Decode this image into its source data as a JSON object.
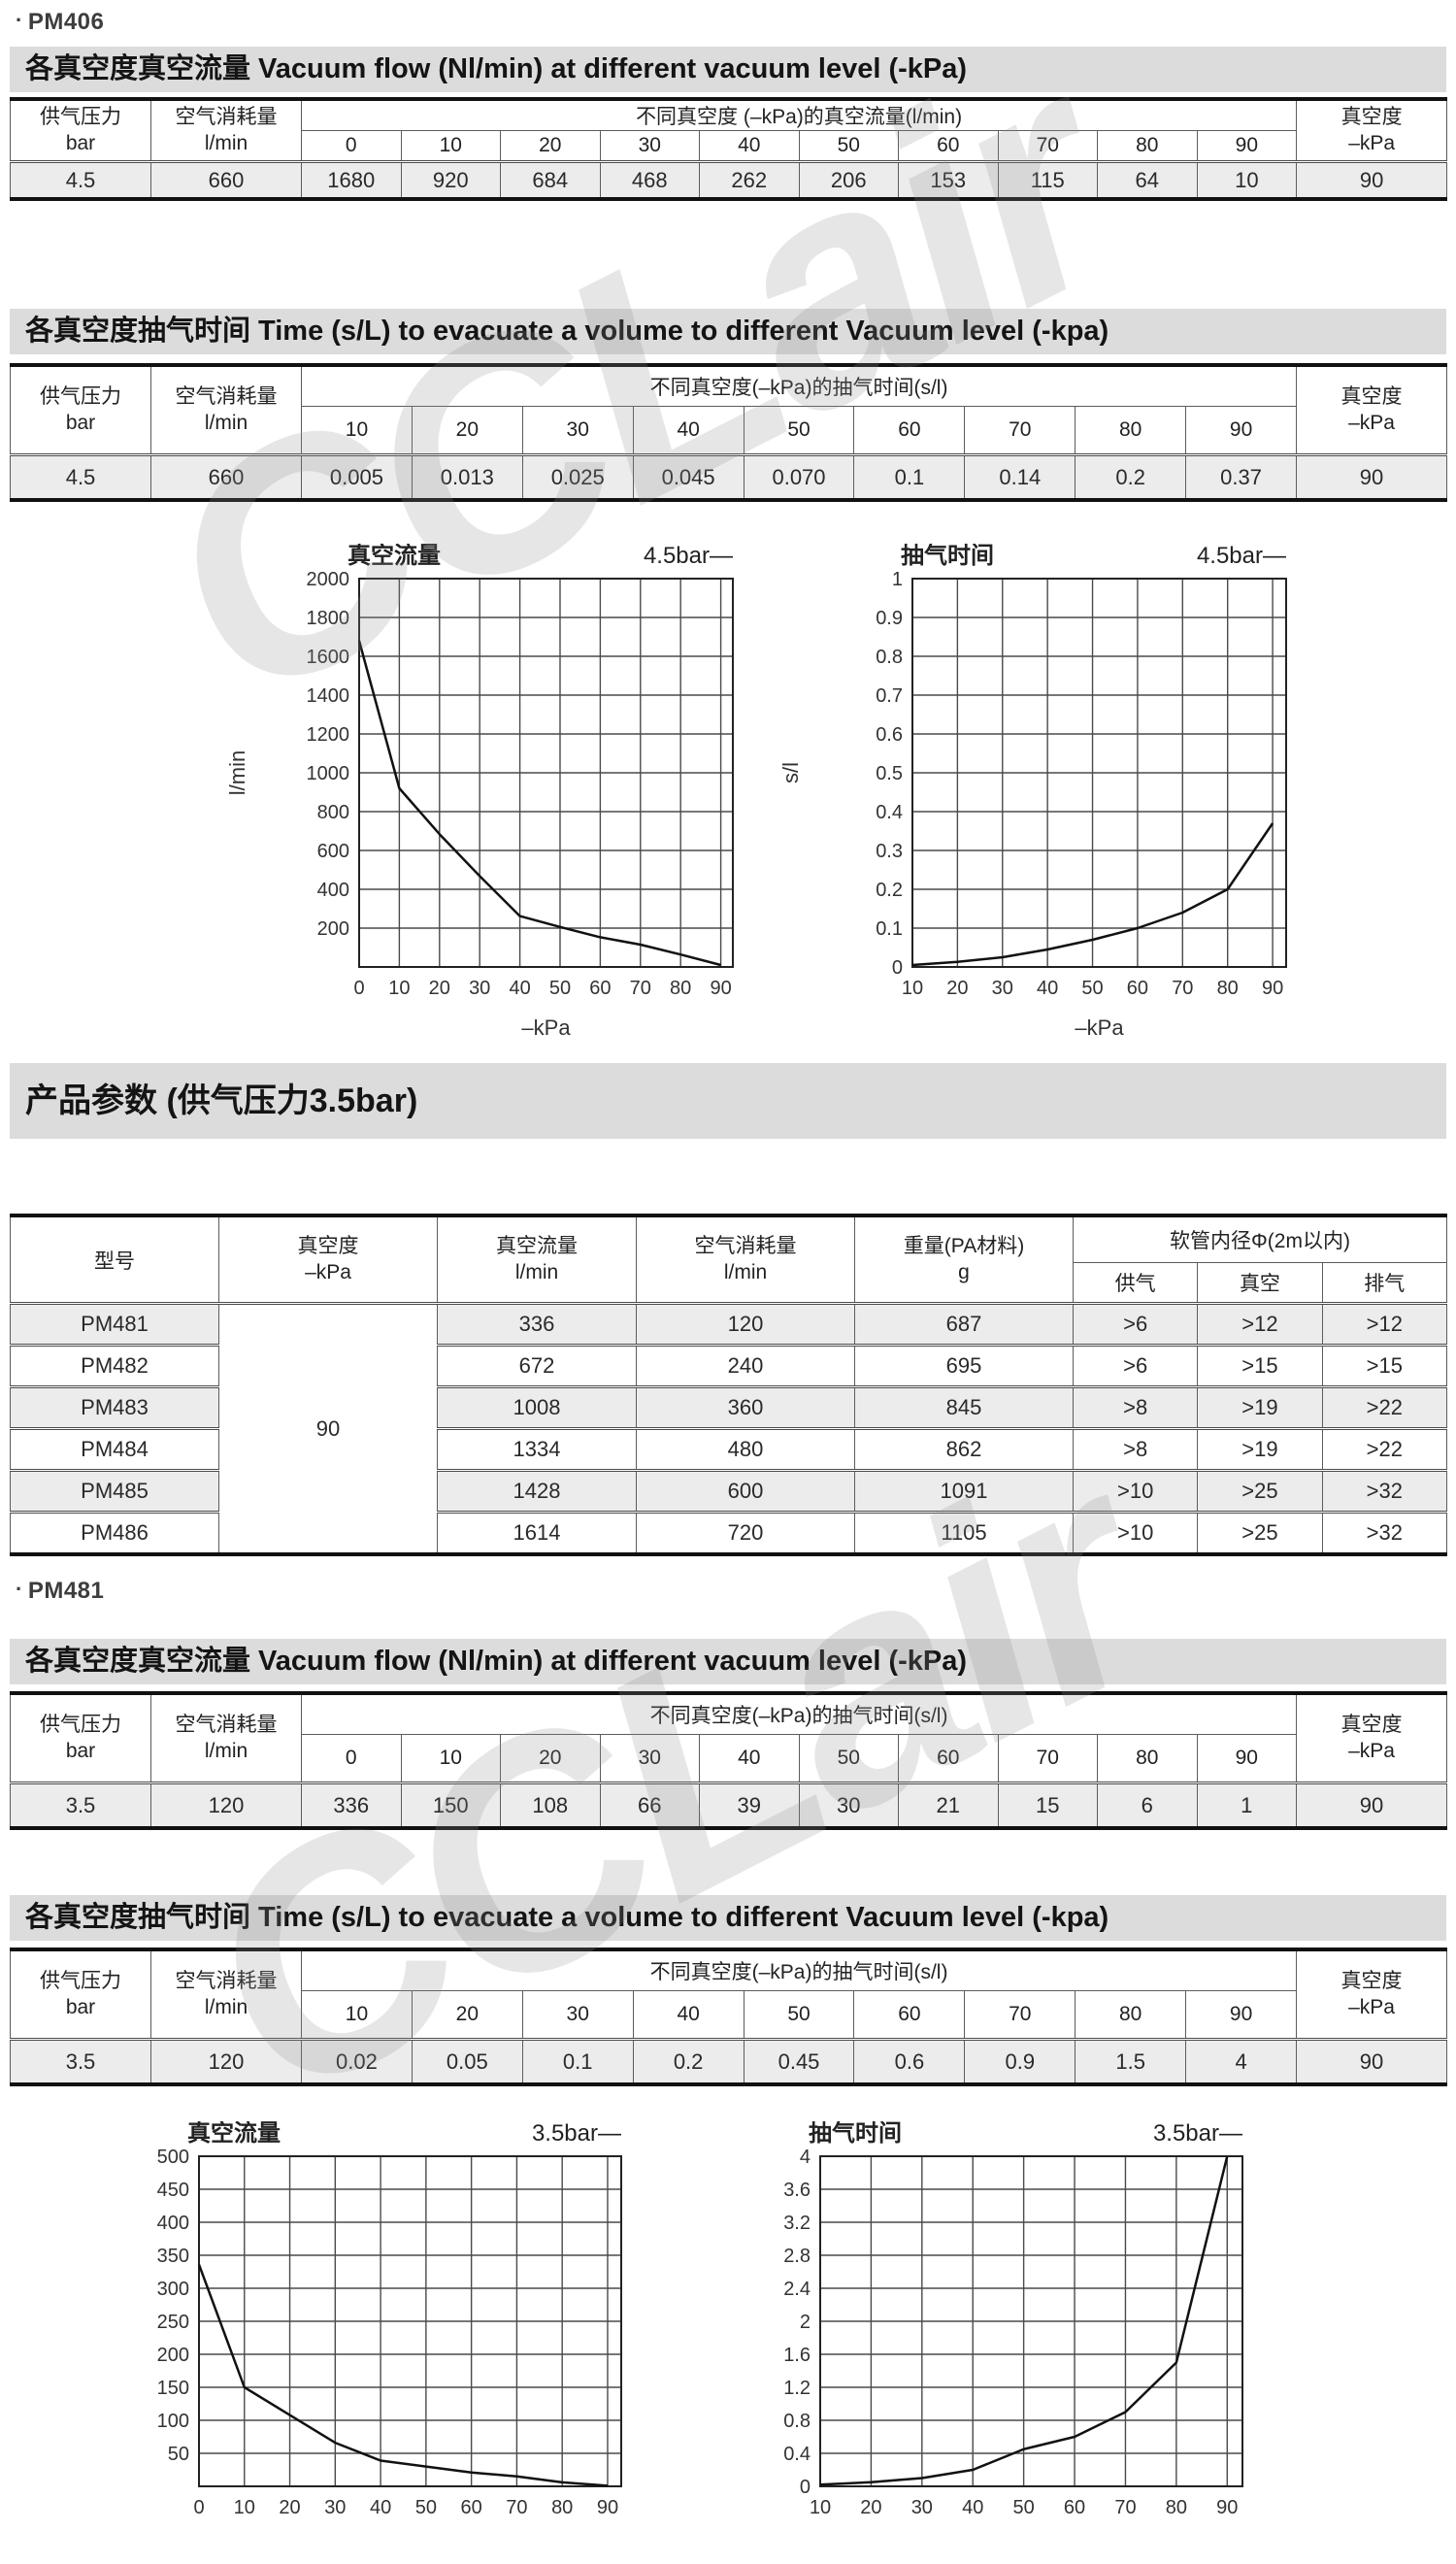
{
  "headers": {
    "pm406": {
      "bullet": "·",
      "text": "PM406"
    },
    "pm481": {
      "bullet": "·",
      "text": "PM481"
    }
  },
  "section_titles": {
    "flow": "各真空度真空流量 Vacuum flow (Nl/min) at different vacuum level (-kPa)",
    "time": "各真空度抽气时间 Time (s/L) to evacuate a volume to different Vacuum level (-kpa)",
    "params": "产品参数 (供气压力3.5bar)"
  },
  "common": {
    "supply_label": "供气压力",
    "supply_unit": "bar",
    "consumption_label": "空气消耗量",
    "consumption_unit": "l/min",
    "vacuum_label": "真空度",
    "vacuum_unit": "–kPa"
  },
  "tables": {
    "pm406_flow": {
      "span_label": "不同真空度 (–kPa)的真空流量(l/min)",
      "columns": [
        "0",
        "10",
        "20",
        "30",
        "40",
        "50",
        "60",
        "70",
        "80",
        "90"
      ],
      "supply": "4.5",
      "consumption": "660",
      "values": [
        "1680",
        "920",
        "684",
        "468",
        "262",
        "206",
        "153",
        "115",
        "64",
        "10"
      ],
      "vacuum": "90"
    },
    "pm406_time": {
      "span_label": "不同真空度(–kPa)的抽气时间(s/l)",
      "columns": [
        "10",
        "20",
        "30",
        "40",
        "50",
        "60",
        "70",
        "80",
        "90"
      ],
      "supply": "4.5",
      "consumption": "660",
      "values": [
        "0.005",
        "0.013",
        "0.025",
        "0.045",
        "0.070",
        "0.1",
        "0.14",
        "0.2",
        "0.37"
      ],
      "vacuum": "90"
    },
    "pm481_flow": {
      "span_label": "不同真空度(–kPa)的抽气时间(s/l)",
      "columns": [
        "0",
        "10",
        "20",
        "30",
        "40",
        "50",
        "60",
        "70",
        "80",
        "90"
      ],
      "supply": "3.5",
      "consumption": "120",
      "values": [
        "336",
        "150",
        "108",
        "66",
        "39",
        "30",
        "21",
        "15",
        "6",
        "1"
      ],
      "vacuum": "90"
    },
    "pm481_time": {
      "span_label": "不同真空度(–kPa)的抽气时间(s/l)",
      "columns": [
        "10",
        "20",
        "30",
        "40",
        "50",
        "60",
        "70",
        "80",
        "90"
      ],
      "supply": "3.5",
      "consumption": "120",
      "values": [
        "0.02",
        "0.05",
        "0.1",
        "0.2",
        "0.45",
        "0.6",
        "0.9",
        "1.5",
        "4"
      ],
      "vacuum": "90"
    }
  },
  "params": {
    "model_label": "型号",
    "vacuum_label": "真空度",
    "vacuum_unit": "–kPa",
    "flow_label": "真空流量",
    "flow_unit": "l/min",
    "consumption_label": "空气消耗量",
    "consumption_unit": "l/min",
    "weight_label": "重量(PA材料)",
    "weight_unit": "g",
    "hose_label": "软管内径Φ(2m以内)",
    "hose_supply": "供气",
    "hose_vacuum": "真空",
    "hose_exhaust": "排气",
    "vacuum_value": "90",
    "rows": [
      {
        "model": "PM481",
        "flow": "336",
        "consumption": "120",
        "weight": "687",
        "supply": ">6",
        "vacuum": ">12",
        "exhaust": ">12"
      },
      {
        "model": "PM482",
        "flow": "672",
        "consumption": "240",
        "weight": "695",
        "supply": ">6",
        "vacuum": ">15",
        "exhaust": ">15"
      },
      {
        "model": "PM483",
        "flow": "1008",
        "consumption": "360",
        "weight": "845",
        "supply": ">8",
        "vacuum": ">19",
        "exhaust": ">22"
      },
      {
        "model": "PM484",
        "flow": "1334",
        "consumption": "480",
        "weight": "862",
        "supply": ">8",
        "vacuum": ">19",
        "exhaust": ">22"
      },
      {
        "model": "PM485",
        "flow": "1428",
        "consumption": "600",
        "weight": "1091",
        "supply": ">10",
        "vacuum": ">25",
        "exhaust": ">32"
      },
      {
        "model": "PM486",
        "flow": "1614",
        "consumption": "720",
        "weight": "1105",
        "supply": ">10",
        "vacuum": ">25",
        "exhaust": ">32"
      }
    ]
  },
  "watermark": {
    "text": "CCLair"
  },
  "chart_data": [
    {
      "type": "line",
      "title": "真空流量",
      "legend": "4.5bar—",
      "ylabel": "l/min",
      "xlabel": "–kPa",
      "x": [
        0,
        10,
        20,
        30,
        40,
        50,
        60,
        70,
        80,
        90
      ],
      "y": [
        1680,
        920,
        684,
        468,
        262,
        206,
        153,
        115,
        64,
        10
      ],
      "xlim": [
        0,
        93
      ],
      "ylim": [
        0,
        2000
      ],
      "ystep": 200,
      "ylabels": [
        "2000",
        "1800",
        "1600",
        "1400",
        "1200",
        "1000",
        "800",
        "600",
        "400",
        "200",
        ""
      ],
      "xlabels": [
        "0",
        "10",
        "20",
        "30",
        "40",
        "50",
        "60",
        "70",
        "80",
        "90"
      ]
    },
    {
      "type": "line",
      "title": "抽气时间",
      "legend": "4.5bar—",
      "ylabel": "s/l",
      "xlabel": "–kPa",
      "x": [
        10,
        20,
        30,
        40,
        50,
        60,
        70,
        80,
        90
      ],
      "y": [
        0.005,
        0.013,
        0.025,
        0.045,
        0.07,
        0.1,
        0.14,
        0.2,
        0.37
      ],
      "xlim": [
        10,
        93
      ],
      "ylim": [
        0,
        1
      ],
      "ystep": 0.1,
      "ylabels": [
        "1",
        "0.9",
        "0.8",
        "0.7",
        "0.6",
        "0.5",
        "0.4",
        "0.3",
        "0.2",
        "0.1",
        "0"
      ],
      "xlabels": [
        "10",
        "20",
        "30",
        "40",
        "50",
        "60",
        "70",
        "80",
        "90"
      ]
    },
    {
      "type": "line",
      "title": "真空流量",
      "legend": "3.5bar—",
      "ylabel": "",
      "xlabel": "",
      "x": [
        0,
        10,
        20,
        30,
        40,
        50,
        60,
        70,
        80,
        90
      ],
      "y": [
        336,
        150,
        108,
        66,
        39,
        30,
        21,
        15,
        6,
        1
      ],
      "xlim": [
        0,
        93
      ],
      "ylim": [
        0,
        500
      ],
      "ystep": 50,
      "ylabels": [
        "500",
        "450",
        "400",
        "350",
        "300",
        "250",
        "200",
        "150",
        "100",
        "50",
        ""
      ],
      "xlabels": [
        "0",
        "10",
        "20",
        "30",
        "40",
        "50",
        "60",
        "70",
        "80",
        "90"
      ]
    },
    {
      "type": "line",
      "title": "抽气时间",
      "legend": "3.5bar—",
      "ylabel": "",
      "xlabel": "",
      "x": [
        10,
        20,
        30,
        40,
        50,
        60,
        70,
        80,
        90
      ],
      "y": [
        0.02,
        0.05,
        0.1,
        0.2,
        0.45,
        0.6,
        0.9,
        1.5,
        4
      ],
      "xlim": [
        10,
        93
      ],
      "ylim": [
        0,
        4
      ],
      "ystep": 0.4,
      "ylabels": [
        "4",
        "3.6",
        "3.2",
        "2.8",
        "2.4",
        "2",
        "1.6",
        "1.2",
        "0.8",
        "0.4",
        "0"
      ],
      "xlabels": [
        "10",
        "20",
        "30",
        "40",
        "50",
        "60",
        "70",
        "80",
        "90"
      ]
    }
  ]
}
